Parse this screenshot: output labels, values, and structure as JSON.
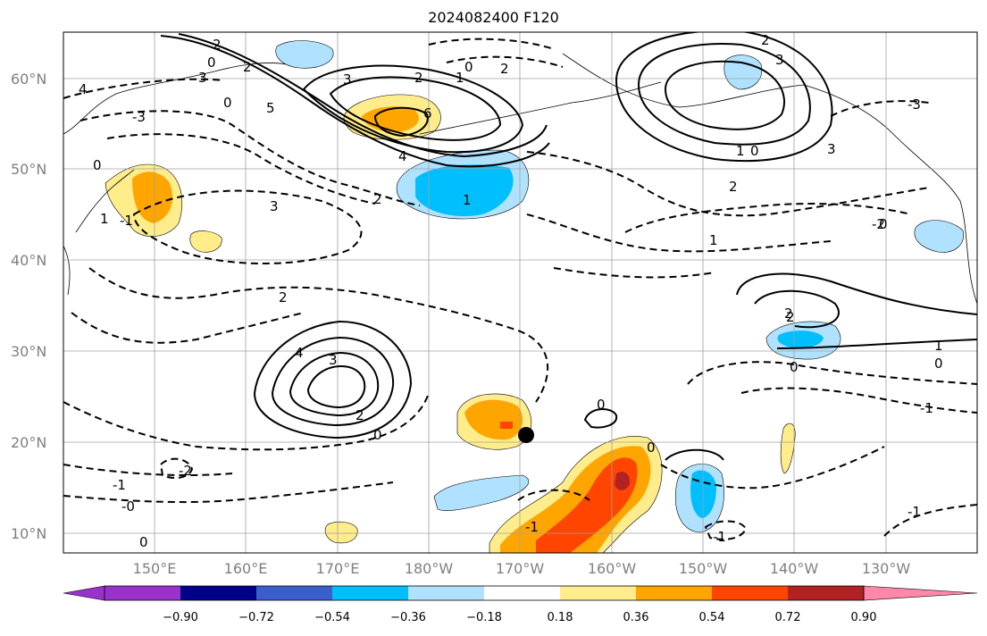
{
  "title": "2024082400 F120",
  "lat_labels": [
    "60°N",
    "50°N",
    "40°N",
    "30°N",
    "20°N",
    "10°N"
  ],
  "lon_labels": [
    "150°E",
    "160°E",
    "170°E",
    "180°W",
    "170°W",
    "160°W",
    "150°W",
    "140°W",
    "130°W"
  ],
  "colorbar": {
    "colors": [
      "#9932CC",
      "#00008B",
      "#3A5FCD",
      "#00BFFF",
      "#B0E2FF",
      "#FFFFFF",
      "#FFEC8B",
      "#FFA500",
      "#FF4500",
      "#B22222",
      "#FF88AA"
    ],
    "tick_labels": [
      "−0.90",
      "−0.72",
      "−0.54",
      "−0.36",
      "−0.18",
      "0.18",
      "0.36",
      "0.54",
      "0.72",
      "0.90"
    ]
  },
  "contour_labels": [
    "2",
    "0",
    "2",
    "3",
    "-3",
    "4",
    "5",
    "0",
    "1",
    "3",
    "2",
    "1",
    "0",
    "2",
    "6",
    "4",
    "1",
    "2",
    "3",
    "3",
    "2",
    "1",
    "0",
    "2",
    "3",
    "1",
    "0",
    "-3",
    "2",
    "4",
    "3",
    "2",
    "-2",
    "-1",
    "2",
    "2",
    "0",
    "1",
    "0",
    "-1",
    "0",
    "-2",
    "-1",
    "0",
    "0",
    "-1",
    "-1",
    "-0",
    "0",
    "-1",
    "0"
  ],
  "colors": {
    "dashed_contour": "#000000",
    "solid_contour": "#000000",
    "grid": "#A0A0A0",
    "marker": "#000000"
  }
}
